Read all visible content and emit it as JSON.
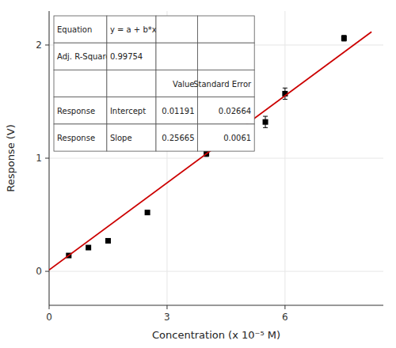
{
  "chart_data": {
    "type": "scatter",
    "x_label": "Concentration (x 10⁻⁵ M)",
    "y_label": "Response (V)",
    "xlim": [
      0,
      8.5
    ],
    "ylim": [
      -0.3,
      2.3
    ],
    "xticks": [
      0,
      3,
      6
    ],
    "yticks": [
      0,
      1,
      2
    ],
    "series": [
      {
        "type": "scatter",
        "marker": "square",
        "color": "#000000",
        "x": [
          0.5,
          1.0,
          1.5,
          2.5,
          4.0,
          5.5,
          6.0,
          7.5
        ],
        "values": [
          0.14,
          0.21,
          0.27,
          0.52,
          1.04,
          1.32,
          1.57,
          2.06
        ],
        "errors": [
          0.015,
          0.015,
          0.015,
          0.015,
          0.025,
          0.05,
          0.05,
          0.025
        ]
      },
      {
        "type": "line",
        "color": "#cc0000",
        "x": [
          0,
          8.2
        ],
        "values": [
          0.01191,
          2.11644
        ]
      }
    ],
    "table": [
      [
        "Equation",
        "y = a + b*x",
        null,
        null
      ],
      [
        "Adj. R-Square",
        "0.99754",
        null,
        null
      ],
      [
        null,
        null,
        "Value",
        "Standard Error"
      ],
      [
        "Response",
        "Intercept",
        "0.01191",
        "0.02664"
      ],
      [
        "Response",
        "Slope",
        "0.25665",
        "0.0061"
      ]
    ]
  }
}
